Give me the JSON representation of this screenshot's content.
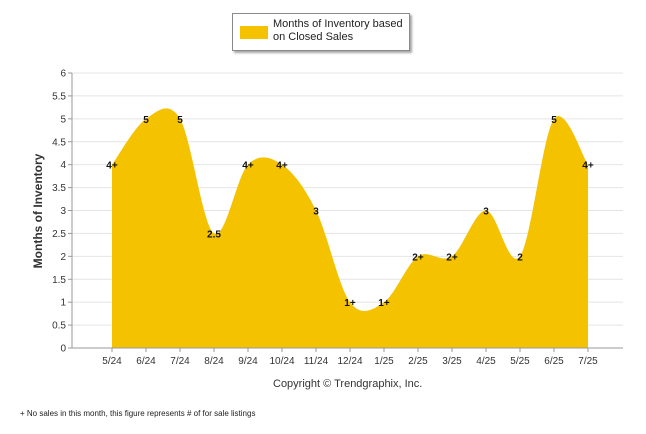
{
  "legend": {
    "label": "Months of Inventory based on Closed Sales"
  },
  "copyright": "Copyright © Trendgraphix, Inc.",
  "footnote": "+  No sales in this month, this figure represents # of for sale listings",
  "colors": {
    "fill": "#F5C200",
    "grid": "#E4E4E4",
    "axis": "#9A9A9A",
    "text": "#333333"
  },
  "chart_data": {
    "type": "area",
    "title": "",
    "xlabel": "",
    "ylabel": "Months of Inventory",
    "ylim": [
      0,
      6
    ],
    "yticks": [
      "0",
      "0.5",
      "1",
      "1.5",
      "2",
      "2.5",
      "3",
      "3.5",
      "4",
      "4.5",
      "5",
      "5.5",
      "6"
    ],
    "grid": true,
    "legend_position": "top-center",
    "categories": [
      "5/24",
      "6/24",
      "7/24",
      "8/24",
      "9/24",
      "10/24",
      "11/24",
      "12/24",
      "1/25",
      "2/25",
      "3/25",
      "4/25",
      "5/25",
      "6/25",
      "7/25"
    ],
    "series": [
      {
        "name": "Months of Inventory based on Closed Sales",
        "values": [
          4,
          5,
          5,
          2.5,
          4,
          4,
          3,
          1,
          1,
          2,
          2,
          3,
          2,
          5,
          4
        ],
        "labels": [
          "4+",
          "5",
          "5",
          "2.5",
          "4+",
          "4+",
          "3",
          "1+",
          "1+",
          "2+",
          "2+",
          "3",
          "2",
          "5",
          "4+"
        ]
      }
    ]
  }
}
